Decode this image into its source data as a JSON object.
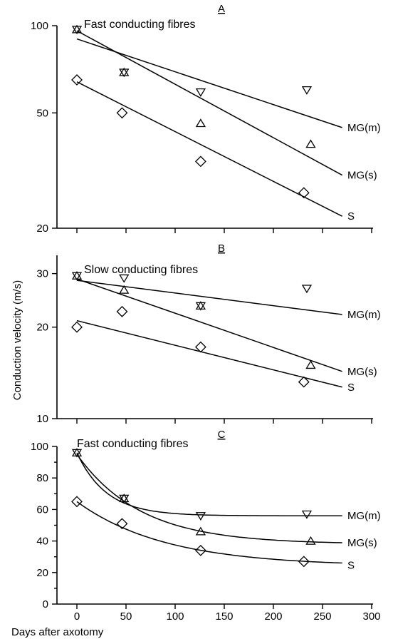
{
  "figure": {
    "ylabel": "Conduction velocity (m/s)",
    "xlabel": "Days after axotomy"
  },
  "chart_data": [
    {
      "panel": "A",
      "type": "scatter",
      "title": "Fast conducting fibres",
      "yscale": "log",
      "ylim": [
        20,
        100
      ],
      "xlim": [
        0,
        300
      ],
      "yticks": [
        20,
        50,
        100
      ],
      "xticks": [
        0,
        50,
        100,
        150,
        200,
        250,
        300
      ],
      "show_x_tick_labels": false,
      "grid": false,
      "series": [
        {
          "name": "MG(m)",
          "marker": "triangle-down",
          "x": [
            0,
            48,
            126,
            234
          ],
          "y": [
            97,
            69,
            59,
            60
          ],
          "fit": {
            "kind": "line",
            "from": [
              0,
              90
            ],
            "to": [
              270,
              44.5
            ]
          }
        },
        {
          "name": "MG(s)",
          "marker": "triangle-up",
          "x": [
            0,
            48,
            126,
            238
          ],
          "y": [
            97,
            69,
            46,
            39
          ],
          "fit": {
            "kind": "line",
            "from": [
              0,
              96
            ],
            "to": [
              270,
              30.5
            ]
          }
        },
        {
          "name": "S",
          "marker": "diamond",
          "x": [
            0,
            46,
            126,
            231
          ],
          "y": [
            65,
            50,
            34,
            26.5
          ],
          "fit": {
            "kind": "line",
            "from": [
              0,
              64
            ],
            "to": [
              270,
              22
            ]
          }
        }
      ]
    },
    {
      "panel": "B",
      "type": "scatter",
      "title": "Slow conducting fibres",
      "yscale": "log",
      "ylim": [
        10,
        33
      ],
      "xlim": [
        0,
        300
      ],
      "yticks": [
        10,
        20,
        30
      ],
      "xticks": [
        0,
        50,
        100,
        150,
        200,
        250,
        300
      ],
      "show_x_tick_labels": false,
      "grid": false,
      "series": [
        {
          "name": "MG(m)",
          "marker": "triangle-down",
          "x": [
            0,
            48,
            126,
            234
          ],
          "y": [
            29.5,
            29,
            23.5,
            26.8
          ],
          "fit": {
            "kind": "line",
            "from": [
              0,
              28.5
            ],
            "to": [
              270,
              22
            ]
          }
        },
        {
          "name": "MG(s)",
          "marker": "triangle-up",
          "x": [
            0,
            48,
            126,
            238
          ],
          "y": [
            29.5,
            26.5,
            23.5,
            15
          ],
          "fit": {
            "kind": "line",
            "from": [
              0,
              28.8
            ],
            "to": [
              270,
              14.3
            ]
          }
        },
        {
          "name": "S",
          "marker": "diamond",
          "x": [
            0,
            46,
            126,
            231
          ],
          "y": [
            20,
            22.5,
            17.2,
            13.2
          ],
          "fit": {
            "kind": "line",
            "from": [
              0,
              21
            ],
            "to": [
              270,
              12.7
            ]
          }
        }
      ]
    },
    {
      "panel": "C",
      "type": "scatter",
      "title": "Fast conducting fibres",
      "yscale": "linear",
      "ylim": [
        0,
        100
      ],
      "xlim": [
        0,
        300
      ],
      "yticks": [
        0,
        20,
        40,
        60,
        80,
        100
      ],
      "xticks": [
        0,
        50,
        100,
        150,
        200,
        250,
        300
      ],
      "show_x_tick_labels": true,
      "grid": false,
      "series": [
        {
          "name": "MG(m)",
          "marker": "triangle-down",
          "x": [
            0,
            48,
            126,
            234
          ],
          "y": [
            96,
            67,
            56,
            57
          ],
          "fit": {
            "kind": "exp",
            "asymptote": 56,
            "amplitude": 40,
            "tau": 30,
            "xmax": 270
          }
        },
        {
          "name": "MG(s)",
          "marker": "triangle-up",
          "x": [
            0,
            48,
            126,
            238
          ],
          "y": [
            96,
            67,
            46,
            40
          ],
          "fit": {
            "kind": "exp",
            "asymptote": 38,
            "amplitude": 57,
            "tau": 65,
            "xmax": 270
          }
        },
        {
          "name": "S",
          "marker": "diamond",
          "x": [
            0,
            46,
            126,
            231
          ],
          "y": [
            65,
            51,
            34,
            27
          ],
          "fit": {
            "kind": "exp",
            "asymptote": 24,
            "amplitude": 41,
            "tau": 90,
            "xmax": 270
          }
        }
      ]
    }
  ]
}
